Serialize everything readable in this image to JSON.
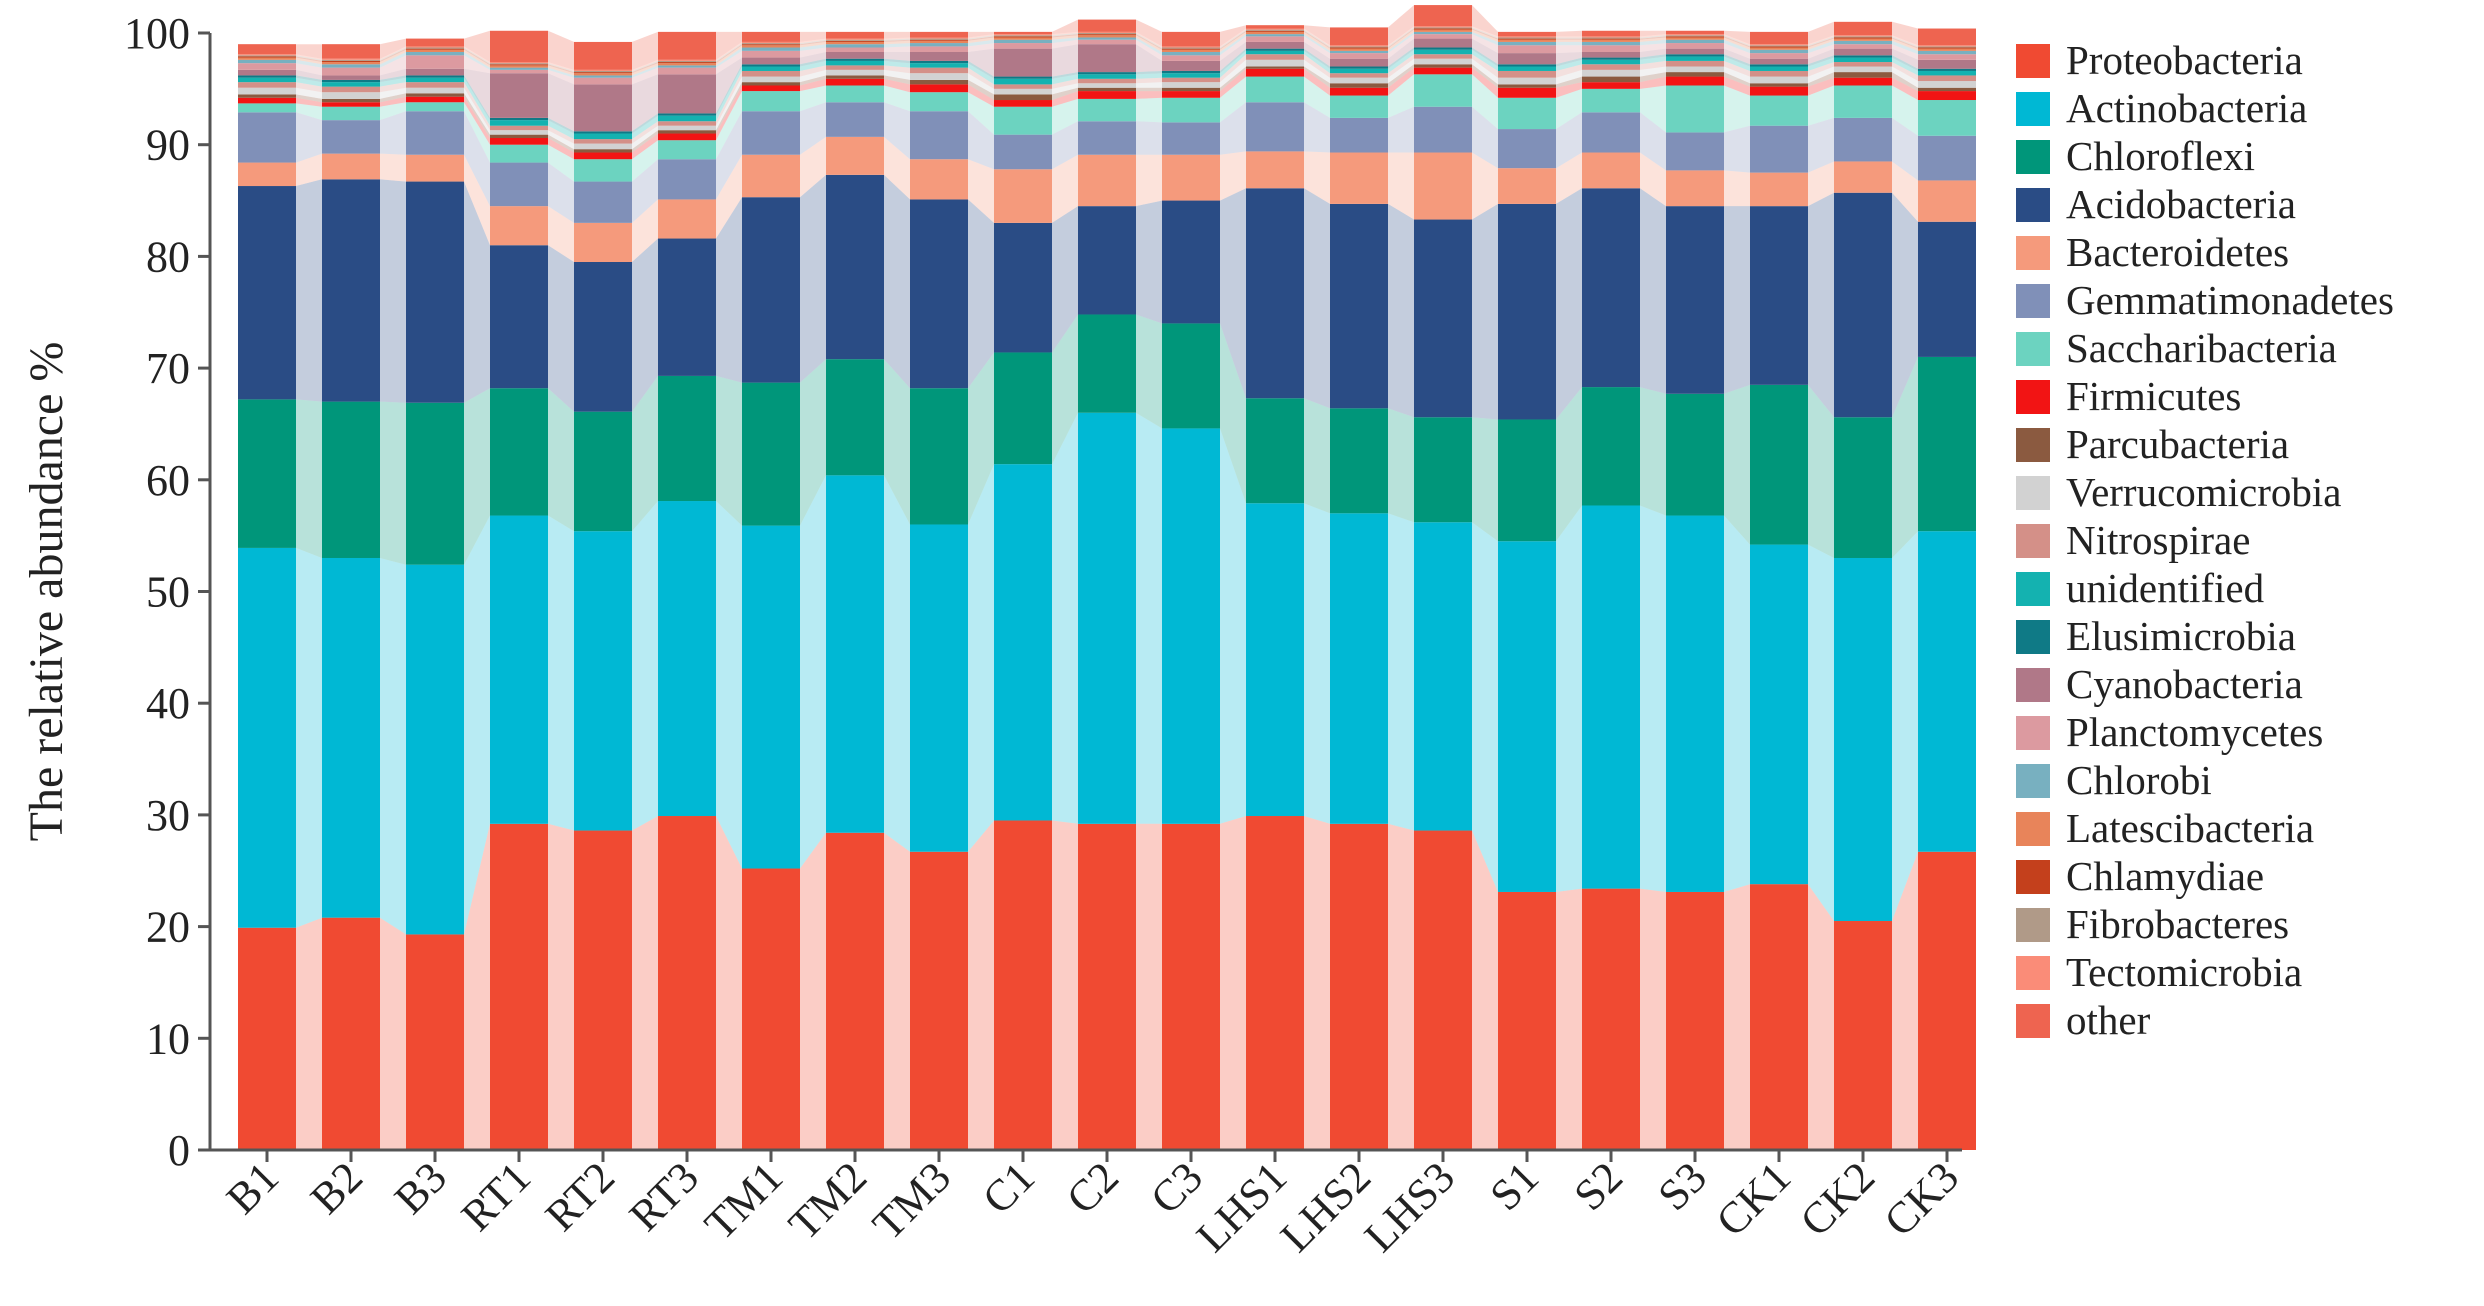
{
  "chart_data": {
    "type": "bar",
    "stacked": true,
    "title": "",
    "xlabel": "",
    "ylabel": "The relative abundance %",
    "ylim": [
      0,
      100
    ],
    "yticks": [
      0,
      10,
      20,
      30,
      40,
      50,
      60,
      70,
      80,
      90,
      100
    ],
    "grid": false,
    "legend_position": "right",
    "categories": [
      "B1",
      "B2",
      "B3",
      "RT1",
      "RT2",
      "RT3",
      "TM1",
      "TM2",
      "TM3",
      "C1",
      "C2",
      "C3",
      "LHS1",
      "LHS2",
      "LHS3",
      "S1",
      "S2",
      "S3",
      "CK1",
      "CK2",
      "CK3"
    ],
    "series": [
      {
        "name": "Proteobacteria",
        "color": "#f04a32",
        "values": [
          19.9,
          20.8,
          19.3,
          29.2,
          28.6,
          29.9,
          25.2,
          28.4,
          26.7,
          29.5,
          29.2,
          29.2,
          29.9,
          29.2,
          28.6,
          23.1,
          23.4,
          23.1,
          23.8,
          20.5,
          26.7
        ]
      },
      {
        "name": "Actinobacteria",
        "color": "#00b8d4",
        "values": [
          34.0,
          32.2,
          33.1,
          27.6,
          26.8,
          28.2,
          30.7,
          32.0,
          29.3,
          31.9,
          36.8,
          35.4,
          28.0,
          27.8,
          27.6,
          31.4,
          34.3,
          33.7,
          30.4,
          32.5,
          28.7
        ]
      },
      {
        "name": "Chloroflexi",
        "color": "#00967a",
        "values": [
          13.3,
          14.0,
          14.5,
          11.4,
          10.7,
          11.2,
          12.8,
          10.4,
          12.2,
          10.0,
          8.8,
          9.4,
          9.4,
          9.4,
          9.4,
          10.9,
          10.6,
          10.9,
          14.3,
          12.6,
          15.6
        ]
      },
      {
        "name": "Acidobacteria",
        "color": "#2a4c85",
        "values": [
          19.1,
          19.9,
          19.8,
          12.8,
          13.4,
          12.3,
          16.6,
          16.5,
          16.9,
          11.6,
          9.7,
          11.0,
          18.8,
          18.3,
          17.7,
          19.3,
          17.8,
          16.8,
          16.0,
          20.1,
          12.1
        ]
      },
      {
        "name": "Bacteroidetes",
        "color": "#f59a7c",
        "values": [
          2.1,
          2.3,
          2.4,
          3.5,
          3.5,
          3.5,
          3.8,
          3.4,
          3.6,
          4.8,
          4.6,
          4.1,
          3.3,
          4.6,
          6.0,
          3.2,
          3.2,
          3.2,
          3.0,
          2.8,
          3.7
        ]
      },
      {
        "name": "Gemmatimonadetes",
        "color": "#8090b8",
        "values": [
          4.5,
          3.0,
          3.9,
          3.9,
          3.7,
          3.6,
          3.9,
          3.1,
          4.3,
          3.1,
          3.0,
          2.9,
          4.4,
          3.1,
          4.1,
          3.5,
          3.6,
          3.4,
          4.2,
          3.9,
          4.0
        ]
      },
      {
        "name": "Saccharibacteria",
        "color": "#6cd3c0",
        "values": [
          0.8,
          1.2,
          0.8,
          1.6,
          2.0,
          1.7,
          1.8,
          1.5,
          1.7,
          2.5,
          2.0,
          2.2,
          2.3,
          2.0,
          2.9,
          2.8,
          2.1,
          4.2,
          2.7,
          2.9,
          3.2
        ]
      },
      {
        "name": "Firmicutes",
        "color": "#f21414",
        "values": [
          0.5,
          0.4,
          0.5,
          0.6,
          0.6,
          0.6,
          0.5,
          0.6,
          0.7,
          0.6,
          0.7,
          0.6,
          0.7,
          0.7,
          0.6,
          0.9,
          0.6,
          0.8,
          0.8,
          0.7,
          0.8
        ]
      },
      {
        "name": "Parcubacteria",
        "color": "#8b5a40",
        "values": [
          0.3,
          0.3,
          0.3,
          0.3,
          0.3,
          0.3,
          0.3,
          0.3,
          0.4,
          0.5,
          0.3,
          0.3,
          0.2,
          0.4,
          0.3,
          0.3,
          0.5,
          0.4,
          0.3,
          0.5,
          0.3
        ]
      },
      {
        "name": "Verrucomicrobia",
        "color": "#d2d2d2",
        "values": [
          0.6,
          0.6,
          0.5,
          0.4,
          0.5,
          0.4,
          0.5,
          0.5,
          0.6,
          0.5,
          0.4,
          0.5,
          0.6,
          0.5,
          0.5,
          0.6,
          0.6,
          0.5,
          0.6,
          0.5,
          0.6
        ]
      },
      {
        "name": "Nitrospirae",
        "color": "#d49088",
        "values": [
          0.5,
          0.5,
          0.5,
          0.4,
          0.4,
          0.4,
          0.5,
          0.4,
          0.5,
          0.4,
          0.4,
          0.4,
          0.5,
          0.4,
          0.4,
          0.6,
          0.5,
          0.5,
          0.5,
          0.4,
          0.5
        ]
      },
      {
        "name": "unidentified",
        "color": "#14b2b0",
        "values": [
          0.4,
          0.4,
          0.4,
          0.5,
          0.5,
          0.5,
          0.4,
          0.4,
          0.4,
          0.5,
          0.4,
          0.4,
          0.3,
          0.4,
          0.4,
          0.4,
          0.4,
          0.4,
          0.4,
          0.4,
          0.4
        ]
      },
      {
        "name": "Elusimicrobia",
        "color": "#0f7a86",
        "values": [
          0.2,
          0.2,
          0.2,
          0.2,
          0.2,
          0.2,
          0.2,
          0.2,
          0.2,
          0.2,
          0.2,
          0.2,
          0.2,
          0.2,
          0.2,
          0.2,
          0.2,
          0.2,
          0.2,
          0.2,
          0.2
        ]
      },
      {
        "name": "Cyanobacteria",
        "color": "#b07888",
        "values": [
          0.5,
          0.4,
          0.6,
          4.0,
          4.2,
          3.5,
          0.6,
          0.6,
          0.8,
          2.5,
          2.5,
          0.9,
          0.6,
          0.7,
          0.8,
          1.0,
          0.5,
          0.5,
          0.5,
          0.6,
          0.8
        ]
      },
      {
        "name": "Planctomycetes",
        "color": "#dc9aa0",
        "values": [
          0.6,
          0.7,
          1.2,
          0.3,
          0.6,
          0.6,
          0.6,
          0.4,
          0.5,
          0.5,
          0.4,
          0.5,
          0.5,
          0.5,
          0.4,
          0.7,
          0.6,
          0.5,
          0.5,
          0.4,
          0.5
        ]
      },
      {
        "name": "Chlorobi",
        "color": "#78b0c0",
        "values": [
          0.3,
          0.3,
          0.3,
          0.2,
          0.2,
          0.2,
          0.3,
          0.3,
          0.3,
          0.3,
          0.2,
          0.3,
          0.2,
          0.2,
          0.2,
          0.3,
          0.3,
          0.3,
          0.3,
          0.3,
          0.3
        ]
      },
      {
        "name": "Latescibacteria",
        "color": "#e8845a",
        "values": [
          0.2,
          0.2,
          0.2,
          0.2,
          0.2,
          0.2,
          0.2,
          0.2,
          0.2,
          0.2,
          0.2,
          0.2,
          0.2,
          0.2,
          0.2,
          0.2,
          0.2,
          0.2,
          0.2,
          0.2,
          0.2
        ]
      },
      {
        "name": "Chlamydiae",
        "color": "#c4401c",
        "values": [
          0.1,
          0.1,
          0.1,
          0.1,
          0.1,
          0.1,
          0.1,
          0.1,
          0.1,
          0.1,
          0.1,
          0.1,
          0.1,
          0.1,
          0.1,
          0.1,
          0.1,
          0.1,
          0.1,
          0.1,
          0.1
        ]
      },
      {
        "name": "Fibrobacteres",
        "color": "#b09a88",
        "values": [
          0.1,
          0.1,
          0.1,
          0.1,
          0.1,
          0.1,
          0.1,
          0.1,
          0.1,
          0.1,
          0.1,
          0.1,
          0.1,
          0.1,
          0.1,
          0.1,
          0.1,
          0.1,
          0.1,
          0.1,
          0.1
        ]
      },
      {
        "name": "Tectomicrobia",
        "color": "#fa8c78",
        "values": [
          0.1,
          0.1,
          0.1,
          0.1,
          0.1,
          0.1,
          0.1,
          0.1,
          0.1,
          0.1,
          0.1,
          0.1,
          0.1,
          0.1,
          0.1,
          0.1,
          0.1,
          0.1,
          0.1,
          0.1,
          0.1
        ]
      },
      {
        "name": "other",
        "color": "#ee6450",
        "values": [
          0.9,
          1.3,
          0.7,
          2.8,
          2.5,
          2.5,
          0.9,
          0.6,
          0.5,
          0.2,
          1.1,
          1.3,
          0.3,
          1.6,
          1.9,
          0.4,
          0.5,
          0.3,
          1.1,
          1.2,
          1.5
        ]
      }
    ]
  }
}
